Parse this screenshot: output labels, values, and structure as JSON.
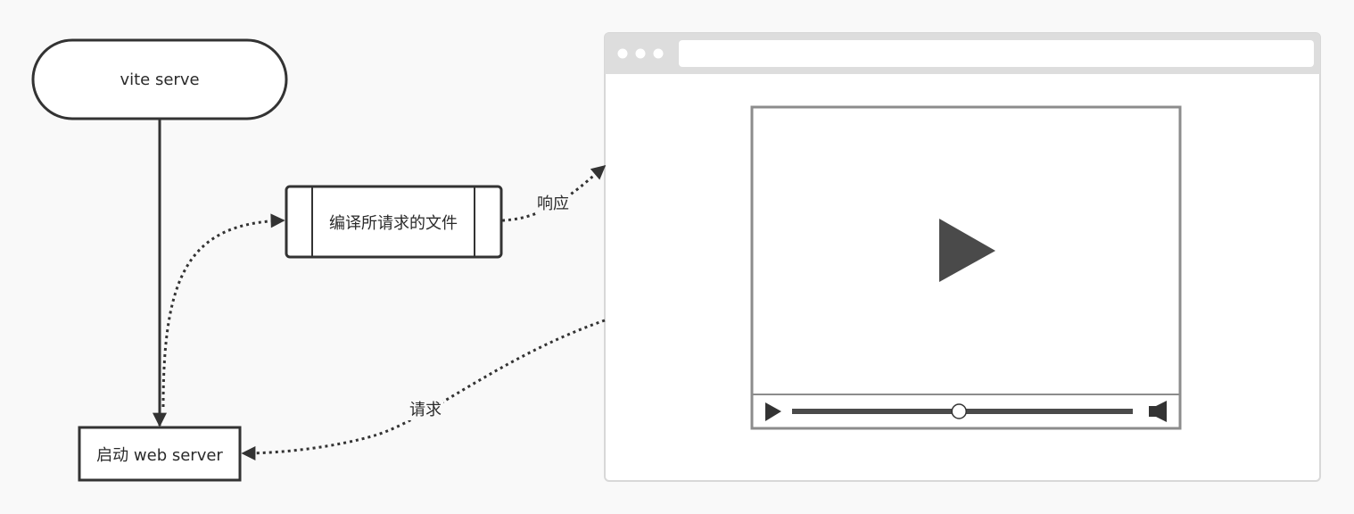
{
  "nodes": {
    "start": "vite serve",
    "compile": "编译所请求的文件",
    "server": "启动 web server"
  },
  "edges": {
    "response": "响应",
    "request": "请求"
  },
  "browser": {
    "url": "",
    "video": {
      "progress": 0.49
    }
  },
  "colors": {
    "stroke": "#333333",
    "canvas": "#f9f9f9",
    "browser_chrome": "#dddddd",
    "video_frame": "#8c8c8c"
  },
  "icons": [
    "play-icon",
    "play-small-icon",
    "volume-icon"
  ]
}
